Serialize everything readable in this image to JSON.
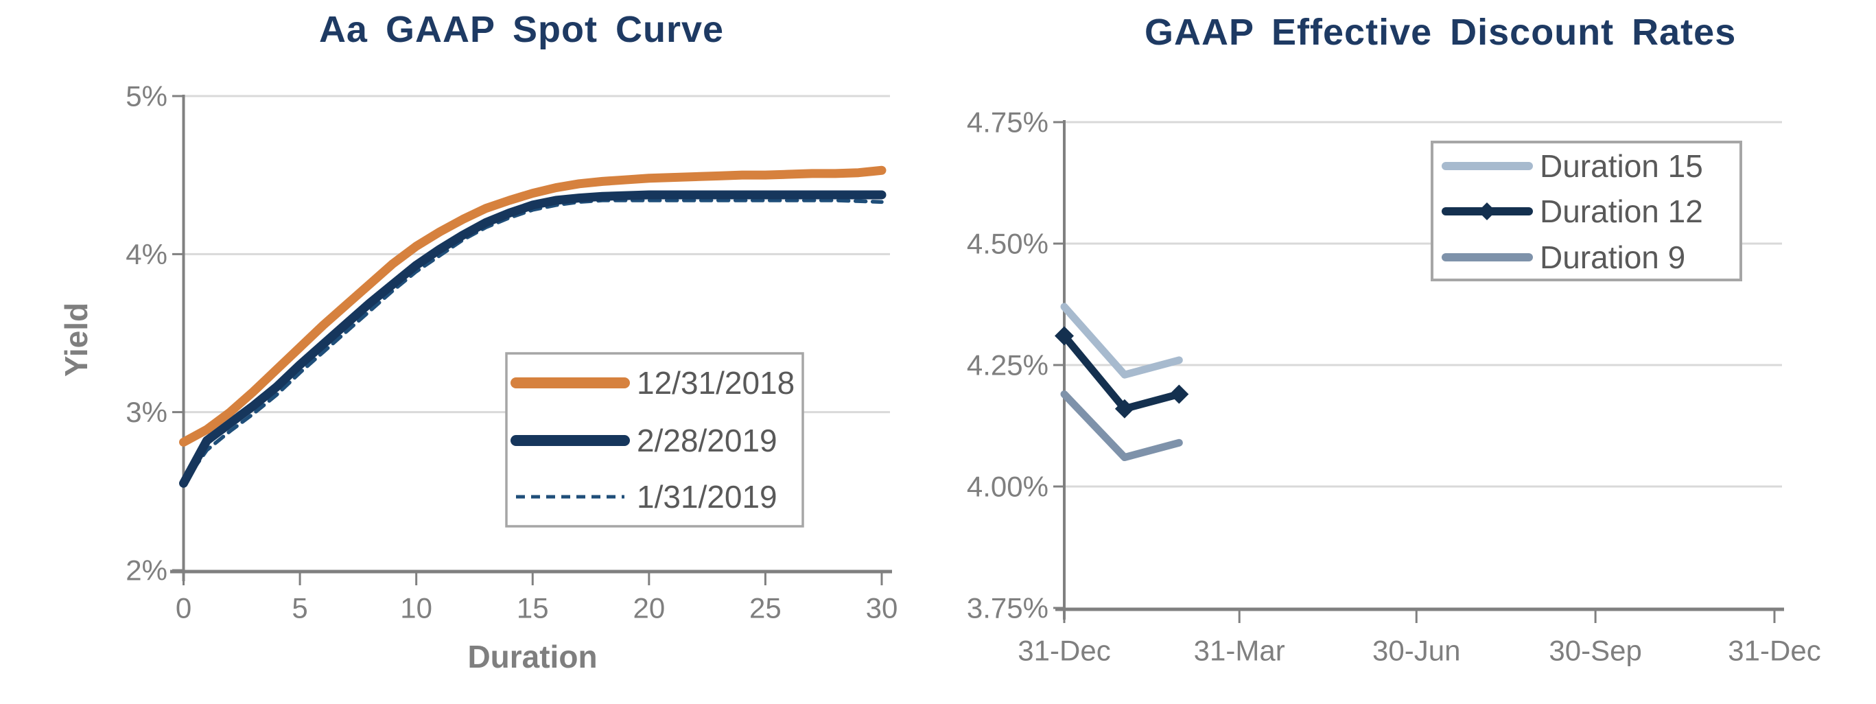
{
  "page": {
    "background": "#ffffff"
  },
  "colors": {
    "title_text": "#1E3A63",
    "axis_text": "#7F7F7F",
    "axis_line": "#808080",
    "gridline": "#D9D9D9",
    "legend_text": "#595959",
    "legend_border": "#A6A6A6",
    "legend_fill": "#FFFFFF"
  },
  "chart_data": [
    {
      "type": "line",
      "title": "Aa GAAP Spot Curve",
      "xlabel": "Duration",
      "ylabel": "Yield",
      "xlim": [
        0,
        30
      ],
      "ylim": [
        2,
        5
      ],
      "grid": "horizontal",
      "legend_position": "inside-lower-right",
      "x_ticks": [
        0,
        5,
        10,
        15,
        20,
        25,
        30
      ],
      "y_ticks": [
        {
          "value": 5,
          "label": "5%"
        },
        {
          "value": 4,
          "label": "4%"
        },
        {
          "value": 3,
          "label": "3%"
        },
        {
          "value": 2,
          "label": "2%"
        }
      ],
      "x": [
        0,
        1,
        2,
        3,
        4,
        5,
        6,
        7,
        8,
        9,
        10,
        11,
        12,
        13,
        14,
        15,
        16,
        17,
        18,
        19,
        20,
        21,
        22,
        23,
        24,
        25,
        26,
        27,
        28,
        29,
        30
      ],
      "series": [
        {
          "name": "12/31/2018",
          "color": "#D6813E",
          "style": "solid",
          "values": [
            2.81,
            2.89,
            3.0,
            3.13,
            3.27,
            3.41,
            3.55,
            3.68,
            3.81,
            3.94,
            4.05,
            4.14,
            4.22,
            4.29,
            4.34,
            4.385,
            4.42,
            4.445,
            4.46,
            4.47,
            4.48,
            4.485,
            4.49,
            4.495,
            4.5,
            4.5,
            4.505,
            4.51,
            4.51,
            4.515,
            4.53
          ]
        },
        {
          "name": "2/28/2019",
          "color": "#16365C",
          "style": "solid",
          "values": [
            2.55,
            2.82,
            2.93,
            3.04,
            3.16,
            3.3,
            3.43,
            3.56,
            3.69,
            3.81,
            3.93,
            4.03,
            4.12,
            4.2,
            4.26,
            4.31,
            4.34,
            4.355,
            4.365,
            4.37,
            4.375,
            4.375,
            4.375,
            4.375,
            4.375,
            4.375,
            4.375,
            4.375,
            4.375,
            4.375,
            4.375
          ]
        },
        {
          "name": "1/31/2019",
          "color": "#1F4E79",
          "style": "dashed",
          "values": [
            2.55,
            2.76,
            2.88,
            2.99,
            3.11,
            3.25,
            3.38,
            3.51,
            3.64,
            3.77,
            3.89,
            3.99,
            4.09,
            4.17,
            4.23,
            4.28,
            4.31,
            4.33,
            4.34,
            4.34,
            4.34,
            4.34,
            4.34,
            4.34,
            4.34,
            4.34,
            4.34,
            4.34,
            4.34,
            4.335,
            4.33
          ]
        }
      ]
    },
    {
      "type": "line",
      "title": "GAAP Effective Discount Rates",
      "xlabel": "",
      "ylabel": "",
      "xlim_days": [
        0,
        365
      ],
      "ylim": [
        3.75,
        4.75
      ],
      "grid": "horizontal",
      "legend_position": "inside-upper-right",
      "x_ticks": [
        {
          "day": 0,
          "label": "31-Dec"
        },
        {
          "day": 90,
          "label": "31-Mar"
        },
        {
          "day": 181,
          "label": "30-Jun"
        },
        {
          "day": 273,
          "label": "30-Sep"
        },
        {
          "day": 365,
          "label": "31-Dec"
        }
      ],
      "y_ticks": [
        {
          "value": 4.75,
          "label": "4.75%"
        },
        {
          "value": 4.5,
          "label": "4.50%"
        },
        {
          "value": 4.25,
          "label": "4.25%"
        },
        {
          "value": 4.0,
          "label": "4.00%"
        },
        {
          "value": 3.75,
          "label": "3.75%"
        }
      ],
      "x_days": [
        0,
        31,
        59
      ],
      "series": [
        {
          "name": "Duration 15",
          "color": "#A7BACE",
          "style": "solid",
          "marker": "none",
          "values": [
            4.37,
            4.23,
            4.26
          ]
        },
        {
          "name": "Duration 12",
          "color": "#14304F",
          "style": "solid",
          "marker": "diamond",
          "values": [
            4.31,
            4.16,
            4.19
          ]
        },
        {
          "name": "Duration 9",
          "color": "#7E92AA",
          "style": "solid",
          "marker": "none",
          "values": [
            4.19,
            4.06,
            4.09
          ]
        }
      ]
    }
  ]
}
